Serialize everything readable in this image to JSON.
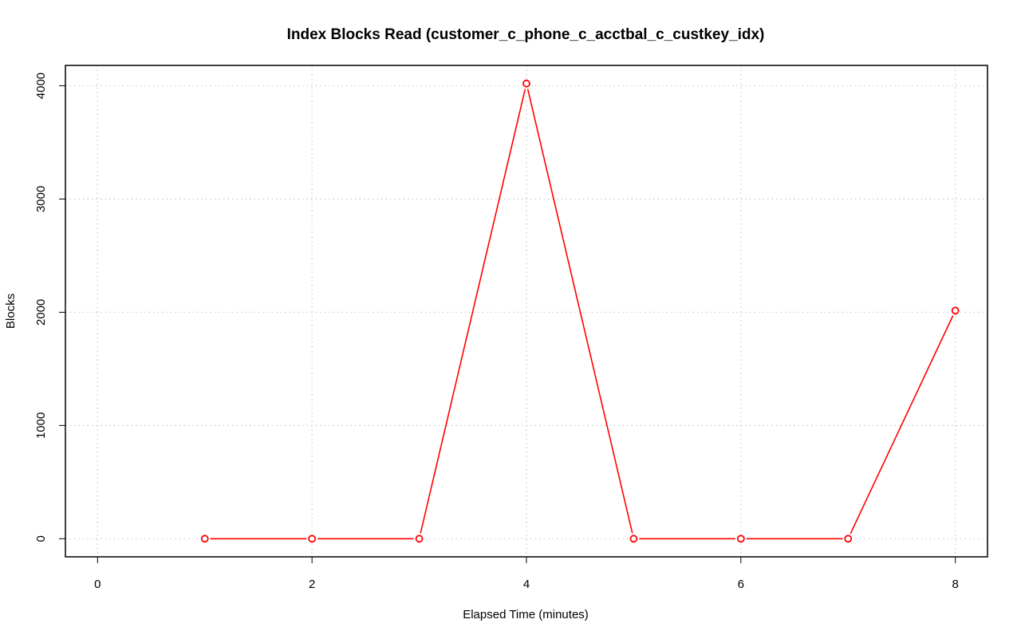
{
  "chart_data": {
    "type": "line",
    "title": "Index Blocks Read (customer_c_phone_c_acctbal_c_custkey_idx)",
    "xlabel": "Elapsed Time (minutes)",
    "ylabel": "Blocks",
    "xlim": [
      -0.3,
      8.3
    ],
    "ylim": [
      -160,
      4180
    ],
    "x_ticks": [
      0,
      2,
      4,
      6,
      8
    ],
    "y_ticks": [
      0,
      1000,
      2000,
      3000,
      4000
    ],
    "grid": true,
    "series": [
      {
        "color": "#ff0000",
        "marker": "open-circle",
        "x": [
          1,
          2,
          3,
          4,
          5,
          6,
          7,
          8
        ],
        "values": [
          0,
          0,
          0,
          4020,
          0,
          0,
          0,
          2015
        ]
      }
    ]
  }
}
